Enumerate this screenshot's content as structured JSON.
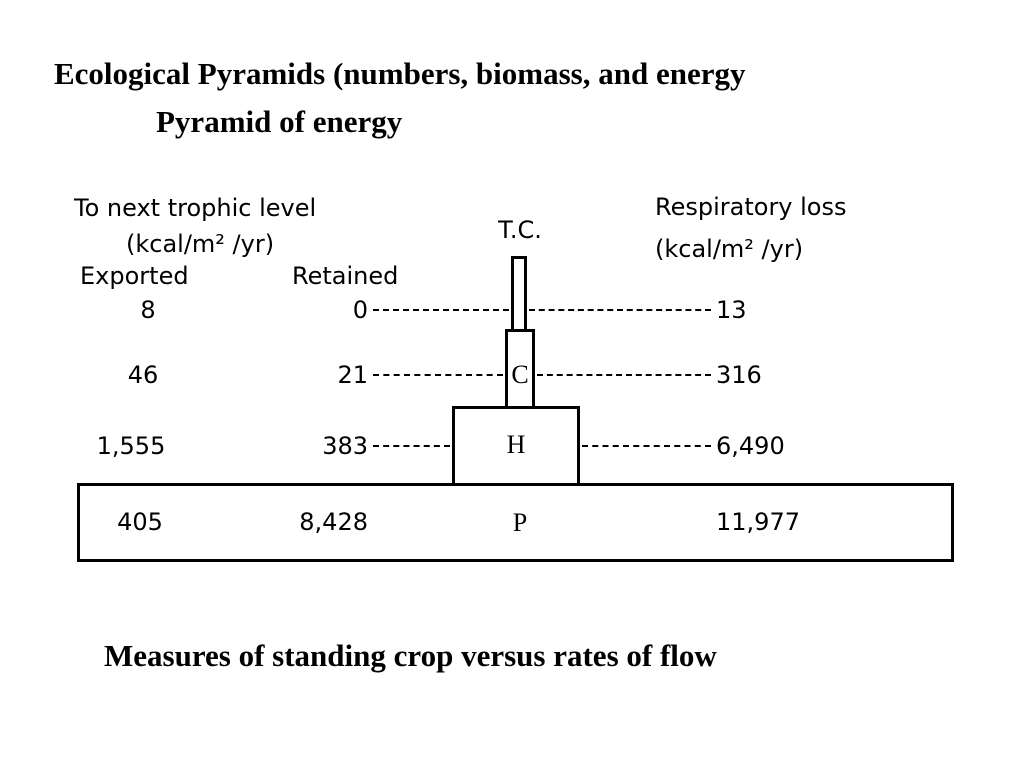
{
  "slide": {
    "title_line1": "Ecological Pyramids (numbers, biomass, and energy",
    "title_line2": "Pyramid of  energy",
    "caption": "Measures of standing crop versus rates of flow"
  },
  "diagram": {
    "left_header_line1": "To next trophic level",
    "left_header_line2": "(kcal/m² /yr)",
    "exported_header": "Exported",
    "retained_header": "Retained",
    "right_header_line1": "Respiratory loss",
    "right_header_line2": "(kcal/m² /yr)",
    "levels": [
      {
        "label": "T.C.",
        "exported": "8",
        "retained": "0",
        "respiratory_loss": "13"
      },
      {
        "label": "C",
        "exported": "46",
        "retained": "21",
        "respiratory_loss": "316"
      },
      {
        "label": "H",
        "exported": "1,555",
        "retained": "383",
        "respiratory_loss": "6,490"
      },
      {
        "label": "P",
        "exported": "405",
        "retained": "8,428",
        "respiratory_loss": "11,977"
      }
    ]
  }
}
